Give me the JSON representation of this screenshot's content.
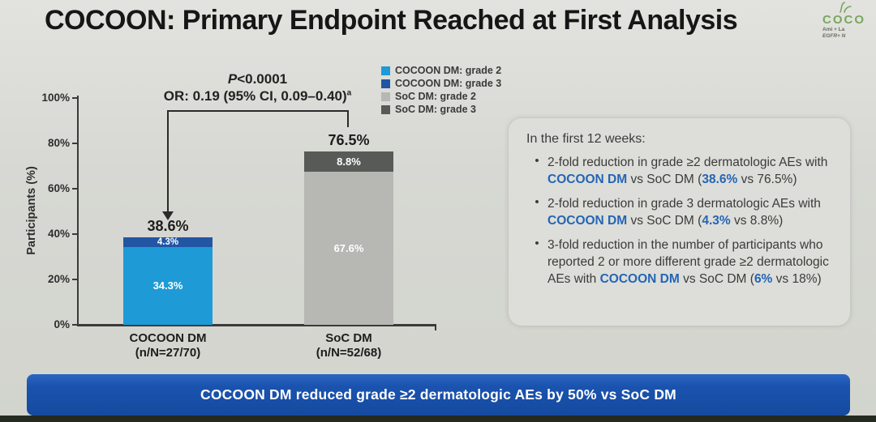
{
  "slide": {
    "title": "COCOON: Primary Endpoint Reached at First Analysis",
    "logo": {
      "word": "COCO",
      "sub1": "Ami + La",
      "sub2": "EGFR+ N"
    }
  },
  "legend": {
    "items": [
      {
        "label": "COCOON DM: grade 2",
        "color": "#1e9ad6"
      },
      {
        "label": "COCOON DM: grade 3",
        "color": "#2256a5"
      },
      {
        "label": "SoC DM: grade 2",
        "color": "#b7b8b4"
      },
      {
        "label": "SoC DM: grade 3",
        "color": "#585a58"
      }
    ]
  },
  "annotation": {
    "p_italic": "P",
    "p_rest": "<0.0001",
    "or_text": "OR: 0.19 (95% CI, 0.09–0.40)",
    "or_sup": "a"
  },
  "chart_data": {
    "type": "bar",
    "stacked": true,
    "ylabel": "Participants (%)",
    "ylim": [
      0,
      100
    ],
    "yticks": [
      "0%",
      "20%",
      "40%",
      "60%",
      "80%",
      "100%"
    ],
    "grid": false,
    "legend_position": "top-center",
    "bars": [
      {
        "category": "COCOON DM",
        "sublabel": "(n/N=27/70)",
        "total": 38.6,
        "total_label": "38.6%",
        "segments": [
          {
            "name": "COCOON DM: grade 2",
            "value": 34.3,
            "label": "34.3%",
            "color": "#1e9ad6"
          },
          {
            "name": "COCOON DM: grade 3",
            "value": 4.3,
            "label": "4.3%",
            "color": "#2256a5"
          }
        ]
      },
      {
        "category": "SoC DM",
        "sublabel": "(n/N=52/68)",
        "total": 76.5,
        "total_label": "76.5%",
        "segments": [
          {
            "name": "SoC DM: grade 2",
            "value": 67.6,
            "label": "67.6%",
            "color": "#b7b8b4"
          },
          {
            "name": "SoC DM: grade 3",
            "value": 8.8,
            "label": "8.8%",
            "color": "#585a58"
          }
        ]
      }
    ]
  },
  "infobox": {
    "heading": "In the first 12 weeks:",
    "accent_color": "#2465b5",
    "bullets": [
      {
        "segments": [
          {
            "text": "2-fold reduction in grade ≥2 dermatologic AEs with "
          },
          {
            "text": "COCOON DM",
            "em": true
          },
          {
            "text": " vs SoC DM ("
          },
          {
            "text": "38.6%",
            "em": true
          },
          {
            "text": " vs 76.5%)"
          }
        ]
      },
      {
        "segments": [
          {
            "text": "2-fold reduction in grade 3 dermatologic AEs with "
          },
          {
            "text": "COCOON DM",
            "em": true
          },
          {
            "text": " vs SoC DM ("
          },
          {
            "text": "4.3%",
            "em": true
          },
          {
            "text": " vs 8.8%)"
          }
        ]
      },
      {
        "segments": [
          {
            "text": "3-fold reduction in the number of participants who reported 2 or more different grade ≥2 dermatologic AEs with "
          },
          {
            "text": "COCOON DM",
            "em": true
          },
          {
            "text": " vs SoC DM ("
          },
          {
            "text": "6%",
            "em": true
          },
          {
            "text": " vs 18%)"
          }
        ]
      }
    ]
  },
  "banner": {
    "text": "COCOON DM reduced grade ≥2 dermatologic AEs by 50% vs SoC DM",
    "color": "#1a53ae"
  }
}
